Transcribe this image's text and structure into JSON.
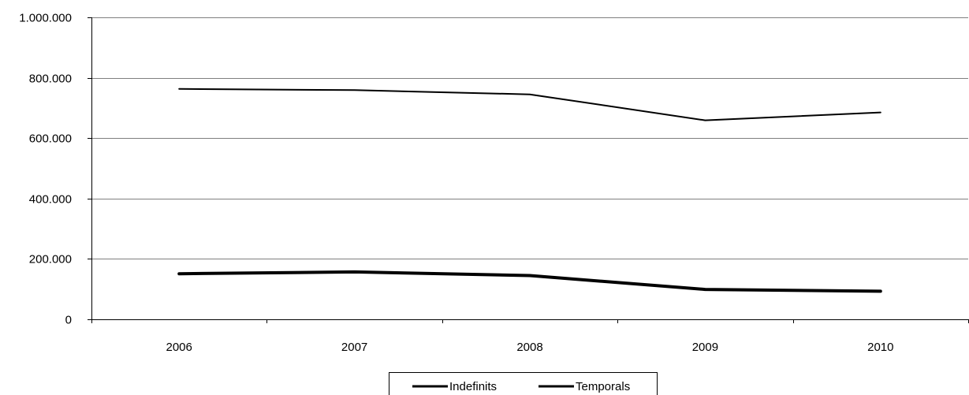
{
  "chart_data": {
    "type": "line",
    "title": "",
    "xlabel": "",
    "ylabel": "",
    "categories": [
      "2006",
      "2007",
      "2008",
      "2009",
      "2010"
    ],
    "ylim": [
      0,
      1000000
    ],
    "yticks": [
      0,
      200000,
      400000,
      600000,
      800000,
      1000000
    ],
    "ytick_labels": [
      "0",
      "200.000",
      "400.000",
      "600.000",
      "800.000",
      "1.000.000"
    ],
    "grid": true,
    "legend_position": "bottom",
    "series": [
      {
        "name": "Indefinits",
        "values": [
          151000,
          157000,
          145000,
          99000,
          93000
        ],
        "color": "#000000",
        "line_weight": "thick"
      },
      {
        "name": "Temporals",
        "values": [
          763000,
          759000,
          745000,
          659000,
          685000
        ],
        "color": "#000000",
        "line_weight": "thin"
      }
    ]
  }
}
